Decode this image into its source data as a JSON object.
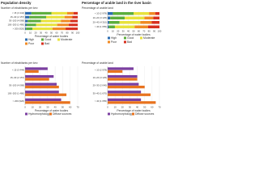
{
  "chart_data": [
    {
      "type": "bar",
      "orientation": "horizontal",
      "stacked": true,
      "title": "Population density",
      "y_label": "Number of inhabitants per km²",
      "x_label": "Percentage of water bodies",
      "categories": [
        "< 15 (3 444)",
        "15–30 (2 157)",
        "30–100 (4 068)",
        "100–200 (1 480)",
        "> 200 (920)"
      ],
      "series": [
        {
          "name": "High",
          "color": "#2b6cb0",
          "values": [
            12,
            8,
            5,
            3,
            2
          ]
        },
        {
          "name": "Good",
          "color": "#5cae3c",
          "values": [
            38,
            32,
            25,
            18,
            12
          ]
        },
        {
          "name": "Moderate",
          "color": "#e8e23c",
          "values": [
            30,
            35,
            38,
            40,
            38
          ]
        },
        {
          "name": "Poor",
          "color": "#f08a24",
          "values": [
            12,
            15,
            18,
            22,
            25
          ]
        },
        {
          "name": "Bad",
          "color": "#d7301f",
          "values": [
            8,
            10,
            14,
            17,
            23
          ]
        }
      ],
      "xlim": [
        0,
        100
      ],
      "xticks": [
        0,
        10,
        20,
        30,
        40,
        50,
        60,
        70,
        80,
        90,
        100
      ]
    },
    {
      "type": "bar",
      "orientation": "horizontal",
      "stacked": true,
      "title": "Percentage of arable land in the river basin",
      "y_label": "Percentage of arable land",
      "x_label": "Percentage of water bodies",
      "categories": [
        "< 10 (2 978)",
        "10–20 (3 125)",
        "20–40 (4 310)",
        "> 40 (1 655)"
      ],
      "series": [
        {
          "name": "High",
          "color": "#2b6cb0",
          "values": [
            10,
            5,
            3,
            2
          ]
        },
        {
          "name": "Good",
          "color": "#5cae3c",
          "values": [
            40,
            28,
            20,
            12
          ]
        },
        {
          "name": "Moderate",
          "color": "#e8e23c",
          "values": [
            30,
            38,
            40,
            38
          ]
        },
        {
          "name": "Poor",
          "color": "#f08a24",
          "values": [
            12,
            17,
            22,
            26
          ]
        },
        {
          "name": "Bad",
          "color": "#d7301f",
          "values": [
            8,
            12,
            15,
            22
          ]
        }
      ],
      "xlim": [
        0,
        100
      ],
      "xticks": [
        0,
        10,
        20,
        30,
        40,
        50,
        60,
        70,
        80,
        90,
        100
      ]
    },
    {
      "type": "bar",
      "orientation": "horizontal",
      "stacked": false,
      "y_label": "Number of inhabitants per km²",
      "x_label": "Percentage of water bodies",
      "categories": [
        "< 15 (3 444)",
        "15–30 (2 157)",
        "30–100 (4 068)",
        "100–200 (1 480)",
        "> 200 (920)"
      ],
      "series": [
        {
          "name": "Hydromorphology",
          "color": "#7b3fa0",
          "values": [
            30,
            38,
            42,
            45,
            48
          ]
        },
        {
          "name": "Diffuse sources",
          "color": "#e8731e",
          "values": [
            18,
            32,
            45,
            55,
            60
          ]
        }
      ],
      "xlim": [
        0,
        70
      ],
      "xticks": [
        0,
        10,
        20,
        30,
        40,
        50,
        60,
        70
      ]
    },
    {
      "type": "bar",
      "orientation": "horizontal",
      "stacked": false,
      "y_label": "Percentage of arable land",
      "x_label": "Percentage of water bodies",
      "categories": [
        "< 10 (2 978)",
        "10–20 (3 125)",
        "20–30 (2 640)",
        "30–40 (1 670)",
        "> 40 (1 655)"
      ],
      "series": [
        {
          "name": "Hydromorphology",
          "color": "#7b3fa0",
          "values": [
            35,
            40,
            42,
            45,
            45
          ]
        },
        {
          "name": "Diffuse sources",
          "color": "#e8731e",
          "values": [
            20,
            40,
            50,
            58,
            65
          ]
        }
      ],
      "xlim": [
        0,
        70
      ],
      "xticks": [
        0,
        10,
        20,
        30,
        40,
        50,
        60,
        70
      ]
    }
  ]
}
